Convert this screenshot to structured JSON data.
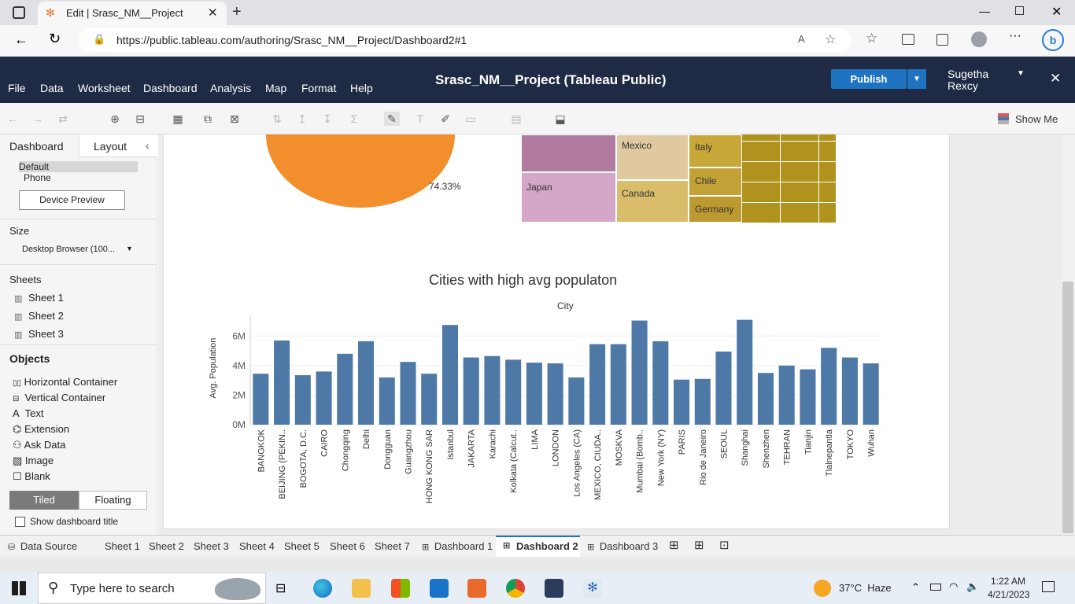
{
  "browser": {
    "tab_title": "Edit | Srasc_NM__Project",
    "url": "https://public.tableau.com/authoring/Srasc_NM__Project/Dashboard2#1"
  },
  "app": {
    "title": "Srasc_NM__Project (Tableau Public)",
    "menu": [
      "File",
      "Data",
      "Worksheet",
      "Dashboard",
      "Analysis",
      "Map",
      "Format",
      "Help"
    ],
    "publish_label": "Publish",
    "user_first": "Sugetha",
    "user_last": "Rexcy",
    "show_me": "Show Me"
  },
  "left_panel": {
    "tab_dashboard": "Dashboard",
    "tab_layout": "Layout",
    "device_default": "Default",
    "device_phone": "Phone",
    "device_preview": "Device Preview",
    "size_heading": "Size",
    "size_value": "Desktop Browser (100...",
    "sheets_heading": "Sheets",
    "sheets": [
      "Sheet 1",
      "Sheet 2",
      "Sheet 3"
    ],
    "objects_heading": "Objects",
    "objects": [
      "Horizontal Container",
      "Vertical Container",
      "Text",
      "Extension",
      "Ask Data",
      "Image",
      "Blank"
    ],
    "tiled": "Tiled",
    "floating": "Floating",
    "show_title": "Show dashboard title"
  },
  "pie": {
    "label": "74.33%",
    "color": "#f28e2b"
  },
  "treemap": {
    "labels": [
      "Mexico",
      "Japan",
      "Canada",
      "Italy",
      "Chile",
      "Germany"
    ]
  },
  "chart_data": {
    "type": "bar",
    "title": "Cities with high avg populaton",
    "xlabel": "City",
    "ylabel": "Avg. Population",
    "yticks": [
      "0M",
      "2M",
      "4M",
      "6M"
    ],
    "ylim": [
      0,
      7400000
    ],
    "color": "#4e79a7",
    "categories": [
      "BANGKOK",
      "BEIJING (PEKIN..",
      "BOGOTA, D.C.",
      "CAIRO",
      "Chongqing",
      "Delhi",
      "Dongguan",
      "Guangzhou",
      "HONG KONG SAR",
      "Istanbul",
      "JAKARTA",
      "Karachi",
      "Kolkata (Calcut..",
      "LIMA",
      "LONDON",
      "Los Angeles (CA)",
      "MEXICO, CIUDA..",
      "MOSKVA",
      "Mumbai (Bomb..",
      "New York (NY)",
      "PARIS",
      "Rio de Janeiro",
      "SEOUL",
      "Shanghai",
      "Shenzhen",
      "TEHRAN",
      "Tianjin",
      "Tlalnepantla",
      "TOKYO",
      "Wuhan"
    ],
    "values": [
      3450000,
      5700000,
      3350000,
      3600000,
      4800000,
      5650000,
      3200000,
      4250000,
      3450000,
      6750000,
      4550000,
      4650000,
      4400000,
      4200000,
      4150000,
      3200000,
      5450000,
      5450000,
      7050000,
      5650000,
      3050000,
      3100000,
      4950000,
      7100000,
      3500000,
      4000000,
      3750000,
      5200000,
      4550000,
      4150000
    ]
  },
  "sheet_tabs": {
    "data_source": "Data Source",
    "sheets": [
      "Sheet 1",
      "Sheet 2",
      "Sheet 3",
      "Sheet 4",
      "Sheet 5",
      "Sheet 6",
      "Sheet 7"
    ],
    "dashboards": [
      "Dashboard 1",
      "Dashboard 2",
      "Dashboard 3"
    ],
    "active": "Dashboard 2"
  },
  "taskbar": {
    "search_placeholder": "Type here to search",
    "weather": "37°C  Haze",
    "time": "1:22 AM",
    "date": "4/21/2023"
  }
}
